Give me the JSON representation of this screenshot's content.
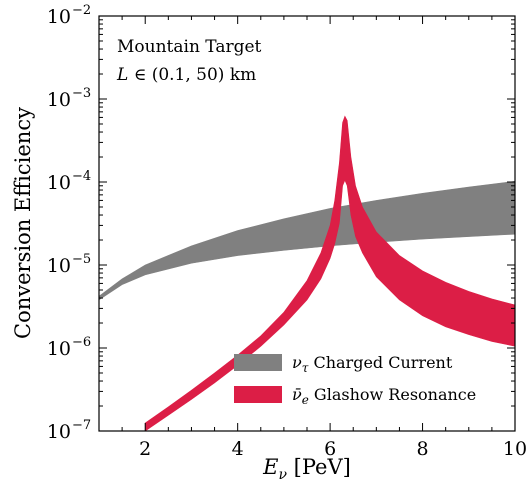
{
  "chart_data": {
    "type": "area",
    "xlabel": "E_ν [PeV]",
    "xlabel_parts": {
      "main": "E",
      "sub": "ν",
      "rest": " [PeV]"
    },
    "ylabel": "Conversion Efficiency",
    "xlim": [
      1,
      10
    ],
    "ylim": [
      1e-07,
      0.01
    ],
    "yscale": "log",
    "grid": false,
    "legend_position": "lower-right",
    "x_ticks": [
      2,
      4,
      6,
      8,
      10
    ],
    "x_tick_labels": [
      "2",
      "4",
      "6",
      "8",
      "10"
    ],
    "y_ticks": [
      1e-07,
      1e-06,
      1e-05,
      0.0001,
      0.001,
      0.01
    ],
    "y_tick_labels": [
      {
        "base": "10",
        "exp": "−7"
      },
      {
        "base": "10",
        "exp": "−6"
      },
      {
        "base": "10",
        "exp": "−5"
      },
      {
        "base": "10",
        "exp": "−4"
      },
      {
        "base": "10",
        "exp": "−3"
      },
      {
        "base": "10",
        "exp": "−2"
      }
    ],
    "annotations": {
      "line1": "Mountain Target",
      "line2_var": "L",
      "line2_rest": " ∈ (0.1, 50) km"
    },
    "series": [
      {
        "name": "ν_τ Charged Current",
        "legend_symbol": "ν",
        "legend_sub": "τ",
        "legend_text": " Charged Current",
        "color": "#808080",
        "x": [
          1,
          1.5,
          2,
          3,
          4,
          5,
          6,
          7,
          8,
          9,
          10
        ],
        "lower": [
          3.8e-06,
          5.8e-06,
          7.6e-06,
          1.05e-05,
          1.3e-05,
          1.5e-05,
          1.7e-05,
          1.88e-05,
          2.05e-05,
          2.2e-05,
          2.35e-05
        ],
        "upper": [
          4.2e-06,
          6.8e-06,
          1e-05,
          1.7e-05,
          2.6e-05,
          3.6e-05,
          4.8e-05,
          6e-05,
          7.3e-05,
          8.7e-05,
          0.000102
        ]
      },
      {
        "name": "ν̄_e Glashow Resonance",
        "legend_symbol": "ν̄",
        "legend_sub": "e",
        "legend_text": " Glashow Resonance",
        "color": "#dc1e46",
        "x": [
          2,
          2.5,
          3,
          3.5,
          4,
          4.5,
          5,
          5.5,
          5.8,
          6.0,
          6.1,
          6.2,
          6.27,
          6.32,
          6.37,
          6.45,
          6.55,
          6.7,
          7.0,
          7.5,
          8.0,
          8.5,
          9.0,
          9.5,
          10
        ],
        "lower": [
          1e-07,
          1.55e-07,
          2.4e-07,
          3.8e-07,
          6.2e-07,
          1.05e-06,
          1.9e-06,
          3.8e-06,
          6.8e-06,
          1.2e-05,
          1.8e-05,
          3.2e-05,
          9e-05,
          0.000105,
          9e-05,
          4e-05,
          2.2e-05,
          1.4e-05,
          7.2e-06,
          3.8e-06,
          2.45e-06,
          1.8e-06,
          1.45e-06,
          1.2e-06,
          1.05e-06
        ],
        "upper": [
          1.25e-07,
          1.95e-07,
          3.1e-07,
          5e-07,
          8.2e-07,
          1.4e-06,
          2.7e-06,
          6.5e-06,
          1.4e-05,
          3e-05,
          6e-05,
          0.00017,
          0.00052,
          0.00062,
          0.00055,
          0.0002,
          9e-05,
          5e-05,
          2.5e-05,
          1.3e-05,
          8.5e-06,
          6.2e-06,
          4.8e-06,
          3.9e-06,
          3.3e-06
        ]
      }
    ]
  }
}
